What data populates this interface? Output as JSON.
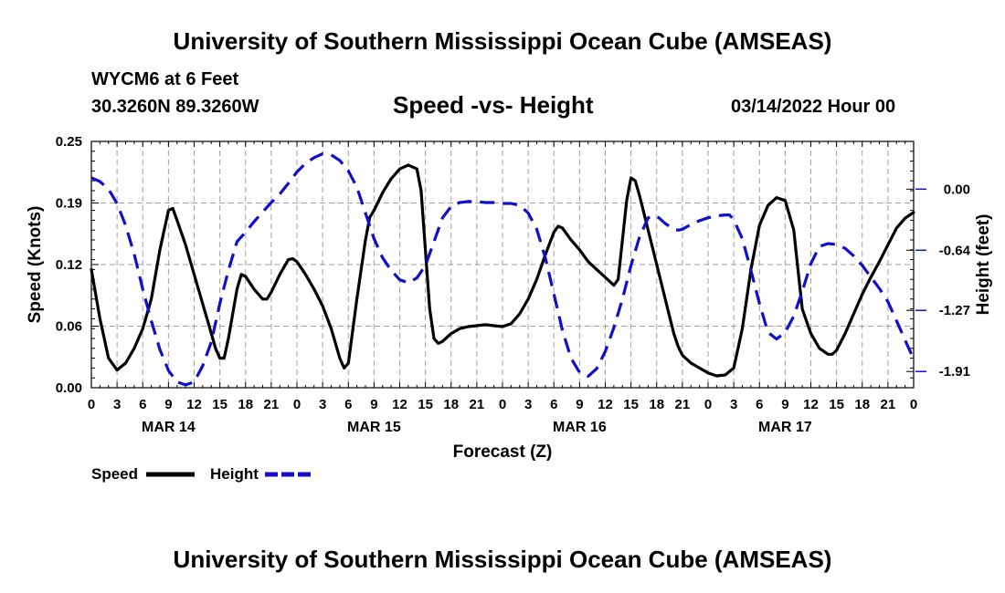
{
  "header": {
    "title": "University of Southern Mississippi Ocean Cube (AMSEAS)",
    "station": "WYCM6 at 6 Feet",
    "coords": "30.3260N  89.3260W",
    "subtitle": "Speed -vs- Height",
    "datetime": "03/14/2022 Hour 00"
  },
  "legend": {
    "speed_label": "Speed",
    "height_label": "Height"
  },
  "footer": {
    "title": "University of Southern Mississippi Ocean Cube (AMSEAS)"
  },
  "colors": {
    "speed": "#000000",
    "height": "#1010cc",
    "grid": "#a0a0a0"
  },
  "chart_data": {
    "type": "line",
    "xlabel": "Forecast (Z)",
    "ylabel_left": "Speed (Knots)",
    "ylabel_right": "Height (feet)",
    "x_range_hours": [
      0,
      96
    ],
    "x_tick_labels": [
      "0",
      "3",
      "6",
      "9",
      "12",
      "15",
      "18",
      "21",
      "0",
      "3",
      "6",
      "9",
      "12",
      "15",
      "18",
      "21",
      "0",
      "3",
      "6",
      "9",
      "12",
      "15",
      "18",
      "21",
      "0",
      "3",
      "6",
      "9",
      "12",
      "15",
      "18",
      "21",
      "0"
    ],
    "date_labels": [
      {
        "hour": 9,
        "label": "MAR 14"
      },
      {
        "hour": 33,
        "label": "MAR 15"
      },
      {
        "hour": 57,
        "label": "MAR 16"
      },
      {
        "hour": 81,
        "label": "MAR 17"
      }
    ],
    "left_axis": {
      "min": 0.0,
      "max": 0.25,
      "ticks": [
        "0.00",
        "0.06",
        "0.12",
        "0.19",
        "0.25"
      ]
    },
    "right_axis": {
      "min": -2.08,
      "max": 0.5,
      "ticks": [
        {
          "value": 0.0,
          "label": "0.00"
        },
        {
          "value": -0.64,
          "label": "-0.64"
        },
        {
          "value": -1.27,
          "label": "-1.27"
        },
        {
          "value": -1.91,
          "label": "-1.91"
        }
      ]
    },
    "series": [
      {
        "name": "Speed",
        "axis": "left",
        "style": "solid",
        "points": [
          [
            0,
            0.12
          ],
          [
            1,
            0.07
          ],
          [
            2,
            0.03
          ],
          [
            3,
            0.018
          ],
          [
            4,
            0.025
          ],
          [
            5,
            0.04
          ],
          [
            6,
            0.06
          ],
          [
            7,
            0.09
          ],
          [
            8,
            0.14
          ],
          [
            9,
            0.18
          ],
          [
            9.5,
            0.182
          ],
          [
            10,
            0.17
          ],
          [
            11,
            0.145
          ],
          [
            12,
            0.115
          ],
          [
            13,
            0.085
          ],
          [
            14,
            0.055
          ],
          [
            14.5,
            0.04
          ],
          [
            15,
            0.03
          ],
          [
            15.5,
            0.03
          ],
          [
            16,
            0.05
          ],
          [
            17,
            0.1
          ],
          [
            17.5,
            0.115
          ],
          [
            18,
            0.113
          ],
          [
            19,
            0.1
          ],
          [
            20,
            0.09
          ],
          [
            20.5,
            0.09
          ],
          [
            21,
            0.097
          ],
          [
            22,
            0.115
          ],
          [
            23,
            0.13
          ],
          [
            23.5,
            0.131
          ],
          [
            24,
            0.128
          ],
          [
            25,
            0.115
          ],
          [
            26,
            0.1
          ],
          [
            27,
            0.083
          ],
          [
            28,
            0.06
          ],
          [
            29,
            0.03
          ],
          [
            29.5,
            0.02
          ],
          [
            30,
            0.025
          ],
          [
            31,
            0.09
          ],
          [
            32,
            0.15
          ],
          [
            32.5,
            0.173
          ],
          [
            33,
            0.18
          ],
          [
            34,
            0.198
          ],
          [
            35,
            0.212
          ],
          [
            36,
            0.222
          ],
          [
            37,
            0.226
          ],
          [
            38,
            0.222
          ],
          [
            38.5,
            0.2
          ],
          [
            39,
            0.14
          ],
          [
            39.5,
            0.08
          ],
          [
            40,
            0.05
          ],
          [
            40.5,
            0.045
          ],
          [
            41,
            0.047
          ],
          [
            42,
            0.055
          ],
          [
            43,
            0.06
          ],
          [
            44,
            0.062
          ],
          [
            45,
            0.063
          ],
          [
            46,
            0.064
          ],
          [
            47,
            0.063
          ],
          [
            48,
            0.062
          ],
          [
            49,
            0.065
          ],
          [
            50,
            0.075
          ],
          [
            51,
            0.09
          ],
          [
            52,
            0.11
          ],
          [
            53,
            0.135
          ],
          [
            54,
            0.158
          ],
          [
            54.5,
            0.164
          ],
          [
            55,
            0.162
          ],
          [
            56,
            0.15
          ],
          [
            57,
            0.14
          ],
          [
            58,
            0.128
          ],
          [
            59,
            0.12
          ],
          [
            60,
            0.112
          ],
          [
            61,
            0.104
          ],
          [
            61.5,
            0.11
          ],
          [
            62,
            0.15
          ],
          [
            62.5,
            0.19
          ],
          [
            63,
            0.213
          ],
          [
            63.5,
            0.21
          ],
          [
            64,
            0.195
          ],
          [
            65,
            0.16
          ],
          [
            66,
            0.125
          ],
          [
            67,
            0.09
          ],
          [
            68,
            0.055
          ],
          [
            68.5,
            0.042
          ],
          [
            69,
            0.033
          ],
          [
            70,
            0.025
          ],
          [
            71,
            0.02
          ],
          [
            72,
            0.015
          ],
          [
            73,
            0.012
          ],
          [
            74,
            0.013
          ],
          [
            75,
            0.02
          ],
          [
            76,
            0.06
          ],
          [
            77,
            0.12
          ],
          [
            78,
            0.165
          ],
          [
            79,
            0.185
          ],
          [
            80,
            0.193
          ],
          [
            81,
            0.19
          ],
          [
            82,
            0.16
          ],
          [
            82.5,
            0.12
          ],
          [
            83,
            0.08
          ],
          [
            84,
            0.055
          ],
          [
            85,
            0.04
          ],
          [
            86,
            0.034
          ],
          [
            86.5,
            0.034
          ],
          [
            87,
            0.038
          ],
          [
            88,
            0.055
          ],
          [
            89,
            0.075
          ],
          [
            90,
            0.095
          ],
          [
            91,
            0.112
          ],
          [
            92,
            0.128
          ],
          [
            93,
            0.145
          ],
          [
            94,
            0.162
          ],
          [
            95,
            0.172
          ],
          [
            96,
            0.178
          ]
        ]
      },
      {
        "name": "Height",
        "axis": "right",
        "style": "dashed",
        "points": [
          [
            0,
            0.12
          ],
          [
            1,
            0.08
          ],
          [
            2,
            0.0
          ],
          [
            3,
            -0.15
          ],
          [
            4,
            -0.38
          ],
          [
            5,
            -0.68
          ],
          [
            6,
            -1.05
          ],
          [
            7,
            -1.38
          ],
          [
            8,
            -1.68
          ],
          [
            9,
            -1.9
          ],
          [
            10,
            -2.02
          ],
          [
            11,
            -2.05
          ],
          [
            12,
            -2.02
          ],
          [
            13,
            -1.85
          ],
          [
            14,
            -1.6
          ],
          [
            15,
            -1.2
          ],
          [
            16,
            -0.85
          ],
          [
            17,
            -0.55
          ],
          [
            18,
            -0.45
          ],
          [
            19,
            -0.34
          ],
          [
            20,
            -0.24
          ],
          [
            21,
            -0.14
          ],
          [
            22,
            -0.05
          ],
          [
            23,
            0.06
          ],
          [
            24,
            0.18
          ],
          [
            25,
            0.27
          ],
          [
            26,
            0.33
          ],
          [
            27,
            0.37
          ],
          [
            28,
            0.36
          ],
          [
            29,
            0.3
          ],
          [
            30,
            0.19
          ],
          [
            31,
            0.02
          ],
          [
            32,
            -0.25
          ],
          [
            33,
            -0.52
          ],
          [
            34,
            -0.72
          ],
          [
            35,
            -0.85
          ],
          [
            36,
            -0.95
          ],
          [
            37,
            -0.98
          ],
          [
            38,
            -0.93
          ],
          [
            39,
            -0.8
          ],
          [
            40,
            -0.55
          ],
          [
            41,
            -0.3
          ],
          [
            42,
            -0.18
          ],
          [
            43,
            -0.14
          ],
          [
            44,
            -0.13
          ],
          [
            45,
            -0.13
          ],
          [
            46,
            -0.14
          ],
          [
            47,
            -0.14
          ],
          [
            48,
            -0.15
          ],
          [
            49,
            -0.15
          ],
          [
            50,
            -0.17
          ],
          [
            51,
            -0.25
          ],
          [
            52,
            -0.42
          ],
          [
            53,
            -0.72
          ],
          [
            54,
            -1.1
          ],
          [
            55,
            -1.48
          ],
          [
            56,
            -1.77
          ],
          [
            57,
            -1.92
          ],
          [
            58,
            -1.96
          ],
          [
            59,
            -1.88
          ],
          [
            60,
            -1.7
          ],
          [
            61,
            -1.45
          ],
          [
            62,
            -1.15
          ],
          [
            63,
            -0.8
          ],
          [
            64,
            -0.5
          ],
          [
            65,
            -0.3
          ],
          [
            66,
            -0.28
          ],
          [
            67,
            -0.36
          ],
          [
            68,
            -0.42
          ],
          [
            68.5,
            -0.43
          ],
          [
            69,
            -0.42
          ],
          [
            70,
            -0.37
          ],
          [
            71,
            -0.33
          ],
          [
            72,
            -0.3
          ],
          [
            73,
            -0.28
          ],
          [
            74,
            -0.27
          ],
          [
            74.5,
            -0.27
          ],
          [
            75,
            -0.32
          ],
          [
            76,
            -0.52
          ],
          [
            77,
            -0.85
          ],
          [
            78,
            -1.2
          ],
          [
            79,
            -1.5
          ],
          [
            80,
            -1.57
          ],
          [
            81,
            -1.5
          ],
          [
            82,
            -1.33
          ],
          [
            83,
            -1.07
          ],
          [
            84,
            -0.78
          ],
          [
            85,
            -0.6
          ],
          [
            86,
            -0.57
          ],
          [
            87,
            -0.58
          ],
          [
            88,
            -0.62
          ],
          [
            89,
            -0.7
          ],
          [
            90,
            -0.8
          ],
          [
            91,
            -0.92
          ],
          [
            92,
            -1.04
          ],
          [
            93,
            -1.18
          ],
          [
            94,
            -1.38
          ],
          [
            95,
            -1.58
          ],
          [
            96,
            -1.78
          ]
        ]
      }
    ]
  }
}
